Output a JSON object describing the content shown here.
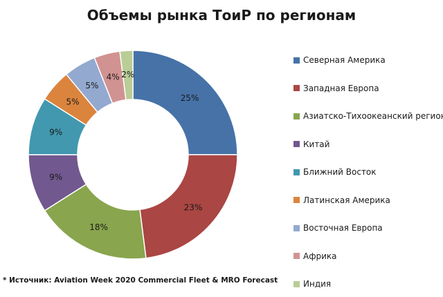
{
  "chart_data": {
    "type": "pie",
    "variant": "donut",
    "title": "Объемы рынка ТоиР по регионам",
    "categories": [
      "Северная Америка",
      "Западная Европа",
      "Азиатско-Тихоокеанский регион",
      "Китай",
      "Ближний Восток",
      "Латинская Америка",
      "Восточная Европа",
      "Африка",
      "Индия"
    ],
    "values": [
      25,
      23,
      18,
      9,
      9,
      5,
      5,
      4,
      2
    ],
    "labels": [
      "25%",
      "23%",
      "18%",
      "9%",
      "9%",
      "5%",
      "5%",
      "4%",
      "2%"
    ],
    "colors": [
      "#4672A8",
      "#AA4643",
      "#89A54E",
      "#71588F",
      "#4198AF",
      "#DB843D",
      "#93A9CF",
      "#D19392",
      "#B9CD96"
    ],
    "legend_position": "right"
  },
  "footnote": "* Источник: Aviation Week 2020 Commercial Fleet & MRO Forecast"
}
